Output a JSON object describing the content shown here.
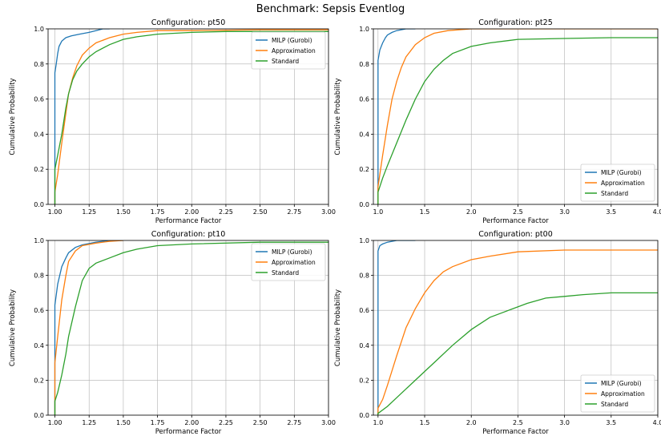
{
  "figure": {
    "title": "Benchmark: Sepsis Eventlog"
  },
  "colors": {
    "milp": "#1f77b4",
    "approx": "#ff7f0e",
    "standard": "#2ca02c",
    "grid": "#b0b0b0"
  },
  "chart_data": [
    {
      "type": "line",
      "title": "Configuration: pt50",
      "xlabel": "Performance Factor",
      "ylabel": "Cumulative Probability",
      "xlim": [
        0.95,
        3.0
      ],
      "ylim": [
        0.0,
        1.0
      ],
      "xticks": [
        "1.00",
        "1.25",
        "1.50",
        "1.75",
        "2.00",
        "2.25",
        "2.50",
        "2.75",
        "3.00"
      ],
      "yticks": [
        "0.0",
        "0.2",
        "0.4",
        "0.6",
        "0.8",
        "1.0"
      ],
      "grid": true,
      "legend": "top-right",
      "series": [
        {
          "name": "MILP (Gurobi)",
          "x": [
            1.0,
            1.0,
            1.01,
            1.02,
            1.03,
            1.05,
            1.08,
            1.12,
            1.18,
            1.25,
            1.3,
            1.35,
            1.4
          ],
          "y": [
            0.0,
            0.75,
            0.8,
            0.86,
            0.9,
            0.93,
            0.95,
            0.96,
            0.97,
            0.98,
            0.99,
            1.0,
            1.0
          ]
        },
        {
          "name": "Approximation",
          "x": [
            1.0,
            1.0,
            1.02,
            1.05,
            1.08,
            1.1,
            1.13,
            1.16,
            1.2,
            1.25,
            1.3,
            1.4,
            1.5,
            1.6,
            1.75,
            2.0,
            2.5,
            3.0
          ],
          "y": [
            0.0,
            0.07,
            0.17,
            0.35,
            0.52,
            0.63,
            0.72,
            0.79,
            0.85,
            0.89,
            0.92,
            0.95,
            0.97,
            0.98,
            0.99,
            0.99,
            0.995,
            0.995
          ]
        },
        {
          "name": "Standard",
          "x": [
            1.0,
            1.0,
            1.02,
            1.05,
            1.08,
            1.1,
            1.13,
            1.16,
            1.2,
            1.25,
            1.3,
            1.4,
            1.5,
            1.6,
            1.75,
            2.0,
            2.25,
            2.5,
            3.0
          ],
          "y": [
            0.0,
            0.2,
            0.28,
            0.4,
            0.55,
            0.63,
            0.71,
            0.76,
            0.8,
            0.84,
            0.87,
            0.91,
            0.94,
            0.955,
            0.97,
            0.98,
            0.985,
            0.985,
            0.985
          ]
        }
      ]
    },
    {
      "type": "line",
      "title": "Configuration: pt25",
      "xlabel": "Performance Factor",
      "ylabel": "Cumulative Probability",
      "xlim": [
        0.95,
        4.0
      ],
      "ylim": [
        0.0,
        1.0
      ],
      "xticks": [
        "1.0",
        "1.5",
        "2.0",
        "2.5",
        "3.0",
        "3.5",
        "4.0"
      ],
      "yticks": [
        "0.0",
        "0.2",
        "0.4",
        "0.6",
        "0.8",
        "1.0"
      ],
      "grid": true,
      "legend": "bottom-right",
      "series": [
        {
          "name": "MILP (Gurobi)",
          "x": [
            1.0,
            1.0,
            1.02,
            1.05,
            1.08,
            1.1,
            1.15,
            1.2,
            1.3,
            1.4
          ],
          "y": [
            0.0,
            0.82,
            0.88,
            0.92,
            0.95,
            0.965,
            0.98,
            0.99,
            1.0,
            1.0
          ]
        },
        {
          "name": "Approximation",
          "x": [
            1.0,
            1.0,
            1.05,
            1.1,
            1.15,
            1.2,
            1.25,
            1.3,
            1.4,
            1.5,
            1.6,
            1.75,
            2.0,
            2.5,
            3.0,
            4.0
          ],
          "y": [
            0.0,
            0.1,
            0.28,
            0.45,
            0.6,
            0.7,
            0.78,
            0.84,
            0.91,
            0.95,
            0.975,
            0.99,
            1.0,
            1.0,
            1.0,
            1.0
          ]
        },
        {
          "name": "Standard",
          "x": [
            1.0,
            1.0,
            1.05,
            1.1,
            1.2,
            1.3,
            1.4,
            1.5,
            1.6,
            1.7,
            1.8,
            2.0,
            2.2,
            2.5,
            3.0,
            3.5,
            4.0
          ],
          "y": [
            0.0,
            0.07,
            0.15,
            0.22,
            0.35,
            0.48,
            0.6,
            0.7,
            0.77,
            0.82,
            0.86,
            0.9,
            0.92,
            0.94,
            0.945,
            0.95,
            0.95
          ]
        }
      ]
    },
    {
      "type": "line",
      "title": "Configuration: pt10",
      "xlabel": "Performance Factor",
      "ylabel": "Cumulative Probability",
      "xlim": [
        0.95,
        3.0
      ],
      "ylim": [
        0.0,
        1.0
      ],
      "xticks": [
        "1.00",
        "1.25",
        "1.50",
        "1.75",
        "2.00",
        "2.25",
        "2.50",
        "2.75",
        "3.00"
      ],
      "yticks": [
        "0.0",
        "0.2",
        "0.4",
        "0.6",
        "0.8",
        "1.0"
      ],
      "grid": true,
      "legend": "top-right",
      "series": [
        {
          "name": "MILP (Gurobi)",
          "x": [
            1.0,
            1.0,
            1.02,
            1.05,
            1.08,
            1.1,
            1.15,
            1.2,
            1.3,
            1.4,
            1.5
          ],
          "y": [
            0.0,
            0.63,
            0.75,
            0.85,
            0.9,
            0.93,
            0.96,
            0.975,
            0.99,
            1.0,
            1.0
          ]
        },
        {
          "name": "Approximation",
          "x": [
            1.0,
            1.0,
            1.02,
            1.05,
            1.08,
            1.1,
            1.15,
            1.2,
            1.3,
            1.4,
            1.5
          ],
          "y": [
            0.0,
            0.3,
            0.45,
            0.66,
            0.8,
            0.88,
            0.94,
            0.97,
            0.985,
            0.995,
            1.0
          ]
        },
        {
          "name": "Standard",
          "x": [
            1.0,
            1.0,
            1.02,
            1.05,
            1.08,
            1.1,
            1.15,
            1.2,
            1.25,
            1.3,
            1.4,
            1.5,
            1.6,
            1.75,
            2.0,
            2.5,
            3.0
          ],
          "y": [
            0.0,
            0.08,
            0.13,
            0.23,
            0.35,
            0.45,
            0.62,
            0.77,
            0.84,
            0.87,
            0.9,
            0.93,
            0.95,
            0.97,
            0.98,
            0.99,
            0.99
          ]
        }
      ]
    },
    {
      "type": "line",
      "title": "Configuration: pt00",
      "xlabel": "Performance Factor",
      "ylabel": "Cumulative Probability",
      "xlim": [
        0.95,
        4.0
      ],
      "ylim": [
        0.0,
        1.0
      ],
      "xticks": [
        "1.0",
        "1.5",
        "2.0",
        "2.5",
        "3.0",
        "3.5",
        "4.0"
      ],
      "yticks": [
        "0.0",
        "0.2",
        "0.4",
        "0.6",
        "0.8",
        "1.0"
      ],
      "grid": true,
      "legend": "bottom-right",
      "series": [
        {
          "name": "MILP (Gurobi)",
          "x": [
            1.0,
            1.0,
            1.02,
            1.05,
            1.1,
            1.15,
            1.2,
            1.3,
            1.4
          ],
          "y": [
            0.0,
            0.94,
            0.97,
            0.98,
            0.99,
            0.995,
            1.0,
            1.0,
            1.0
          ]
        },
        {
          "name": "Approximation",
          "x": [
            1.0,
            1.0,
            1.05,
            1.1,
            1.2,
            1.3,
            1.4,
            1.5,
            1.6,
            1.7,
            1.8,
            2.0,
            2.2,
            2.5,
            3.0,
            4.0
          ],
          "y": [
            0.0,
            0.04,
            0.09,
            0.17,
            0.34,
            0.5,
            0.61,
            0.7,
            0.77,
            0.82,
            0.85,
            0.89,
            0.91,
            0.935,
            0.945,
            0.945
          ]
        },
        {
          "name": "Standard",
          "x": [
            1.0,
            1.0,
            1.1,
            1.2,
            1.3,
            1.4,
            1.5,
            1.6,
            1.8,
            2.0,
            2.2,
            2.4,
            2.6,
            2.8,
            3.0,
            3.2,
            3.5,
            4.0
          ],
          "y": [
            0.0,
            0.01,
            0.05,
            0.1,
            0.15,
            0.2,
            0.25,
            0.3,
            0.4,
            0.49,
            0.56,
            0.6,
            0.64,
            0.67,
            0.68,
            0.69,
            0.7,
            0.7
          ]
        }
      ]
    }
  ]
}
